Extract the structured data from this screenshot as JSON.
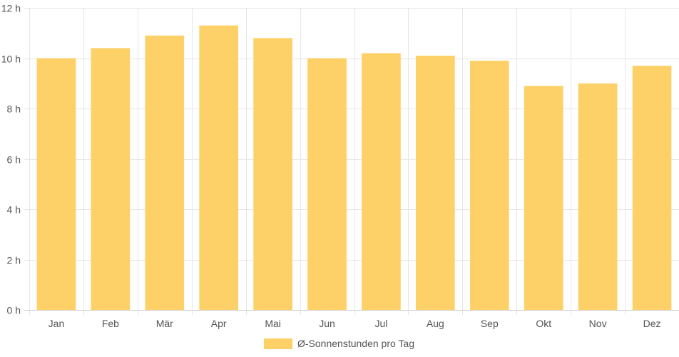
{
  "chart_data": {
    "type": "bar",
    "categories": [
      "Jan",
      "Feb",
      "Mär",
      "Apr",
      "Mai",
      "Jun",
      "Jul",
      "Aug",
      "Sep",
      "Okt",
      "Nov",
      "Dez"
    ],
    "series": [
      {
        "name": "Ø-Sonnenstunden pro Tag",
        "values": [
          10.0,
          10.4,
          10.9,
          11.3,
          10.8,
          10.0,
          10.2,
          10.1,
          9.9,
          8.9,
          9.0,
          9.7
        ]
      }
    ],
    "ylim": [
      0,
      12
    ],
    "yticks": [
      0,
      2,
      4,
      6,
      8,
      10,
      12
    ],
    "ytick_labels": [
      "0 h",
      "2 h",
      "4 h",
      "6 h",
      "8 h",
      "10 h",
      "12 h"
    ],
    "grid": true,
    "legend": "bottom-center",
    "colors": {
      "bar": "#fdd167",
      "grid": "#e6e6e6",
      "axis": "#cccccc",
      "text": "#555555"
    }
  }
}
